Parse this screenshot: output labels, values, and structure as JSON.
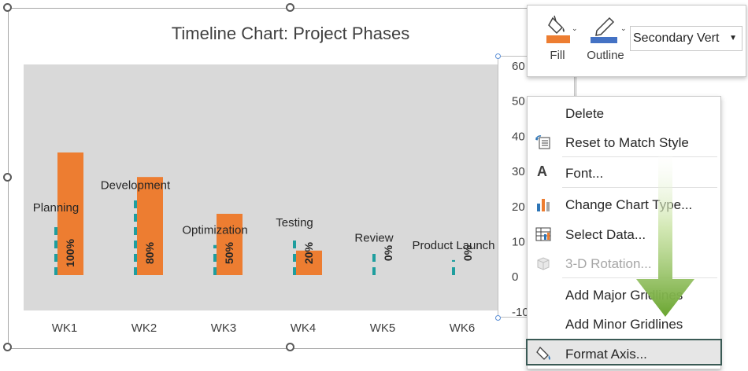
{
  "chart": {
    "title": "Timeline Chart: Project Phases"
  },
  "chart_data": {
    "type": "bar",
    "title": "Timeline Chart: Project Phases",
    "categories": [
      "WK1",
      "WK2",
      "WK3",
      "WK4",
      "WK5",
      "WK6"
    ],
    "series": [
      {
        "values": [
          100,
          80,
          50,
          20,
          0,
          0
        ],
        "data_labels": [
          "100%",
          "80%",
          "50%",
          "20%",
          "0%",
          "0%"
        ],
        "color": "#ed7d31"
      }
    ],
    "phases": [
      {
        "label": "Planning",
        "height": 35
      },
      {
        "label": "Development",
        "height": 50
      },
      {
        "label": "Optimization",
        "height": 20
      },
      {
        "label": "Testing",
        "height": 25
      },
      {
        "label": "Review",
        "height": 15
      },
      {
        "label": "Product Launch",
        "height": 10
      }
    ],
    "secondary_axis_ticks": [
      "60",
      "50",
      "40",
      "30",
      "20",
      "10",
      "0",
      "-10"
    ],
    "secondary_axis_range": [
      -10,
      60
    ],
    "primary_max": 140,
    "phase_line_color": "#1f9e9e",
    "plot_background": "#d9d9d9"
  },
  "mini_toolbar": {
    "fill_label": "Fill",
    "outline_label": "Outline",
    "element_selected": "Secondary Vert",
    "fill_color": "#ed7d31",
    "outline_color": "#4472c4"
  },
  "context_menu": {
    "items": [
      {
        "label": "Delete",
        "icon": "none",
        "enabled": true
      },
      {
        "label": "Reset to Match Style",
        "icon": "reset-style-icon",
        "enabled": true
      },
      {
        "label": "Font...",
        "icon": "font-icon",
        "enabled": true
      },
      {
        "label": "Change Chart Type...",
        "icon": "chart-type-icon",
        "enabled": true
      },
      {
        "label": "Select Data...",
        "icon": "select-data-icon",
        "enabled": true
      },
      {
        "label": "3-D Rotation...",
        "icon": "rotation-3d-icon",
        "enabled": false
      },
      {
        "label": "Add Major Gridlines",
        "icon": "none",
        "enabled": true
      },
      {
        "label": "Add Minor Gridlines",
        "icon": "none",
        "enabled": true
      },
      {
        "label": "Format Axis...",
        "icon": "format-axis-icon",
        "enabled": true,
        "highlighted": true
      }
    ]
  }
}
